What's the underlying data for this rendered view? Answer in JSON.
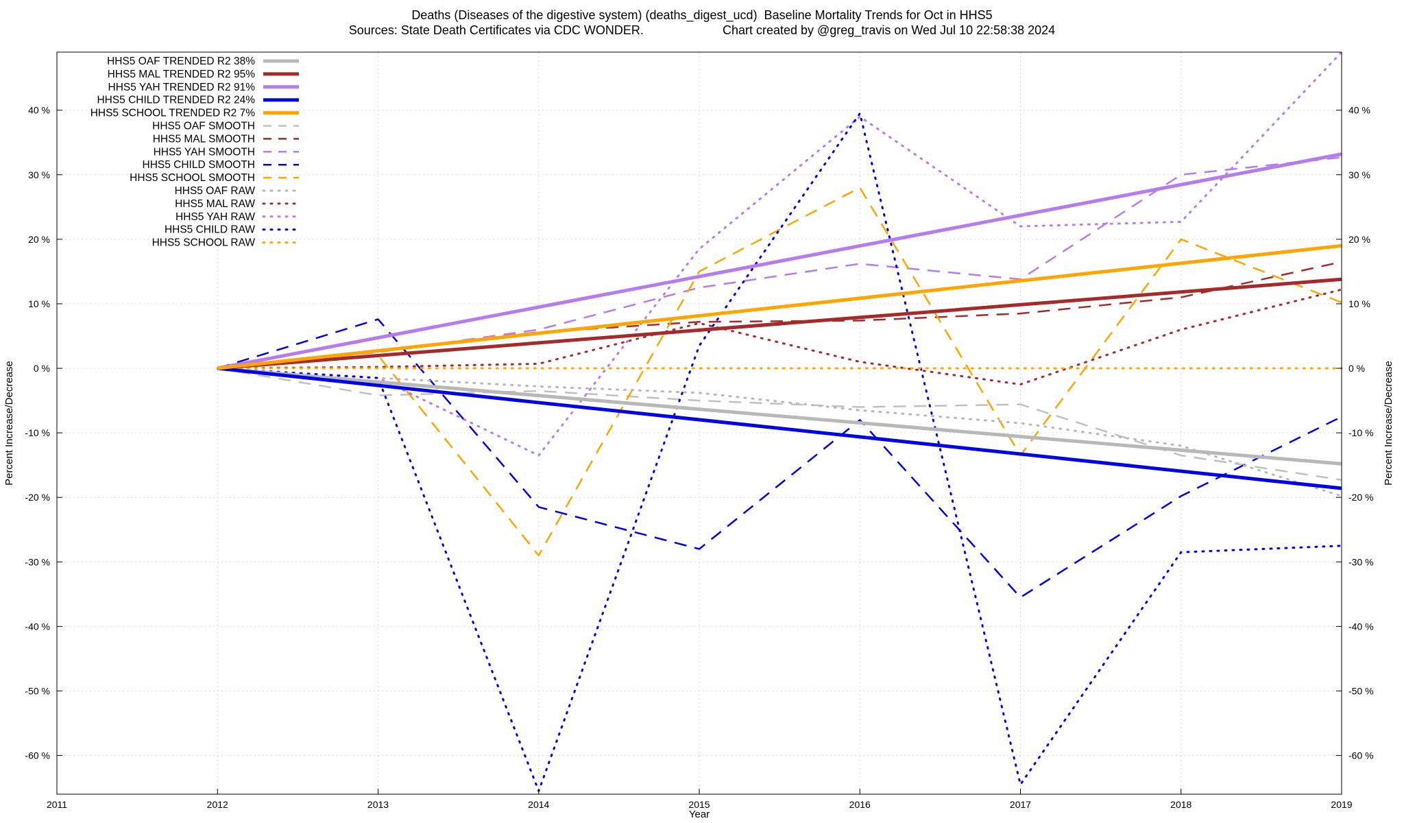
{
  "chart_data": {
    "type": "line",
    "title": "Deaths (Diseases of the digestive system) (deaths_digest_ucd)  Baseline Mortality Trends for Oct in HHS5",
    "subtitle_left": "Sources: State Death Certificates via CDC WONDER.",
    "subtitle_right": "Chart created by @greg_travis on Wed Jul 10 22:58:38 2024",
    "xlabel": "Year",
    "ylabel": "Percent Increase/Decrease",
    "xlim": [
      2011,
      2019
    ],
    "ylim": [
      -66,
      49
    ],
    "x_ticks": [
      2011,
      2012,
      2013,
      2014,
      2015,
      2016,
      2017,
      2018,
      2019
    ],
    "y_ticks": [
      40,
      30,
      20,
      10,
      0,
      -10,
      -20,
      -30,
      -40,
      -50,
      -60
    ],
    "y_tick_labels": [
      "40 %",
      "30 %",
      "20 %",
      "10 %",
      "0 %",
      "-10 %",
      "-20 %",
      "-30 %",
      "-40 %",
      "-50 %",
      "-60 %"
    ],
    "grid": true,
    "legend_position": "top-left",
    "series": [
      {
        "name": "HHS5 OAF TRENDED R2  38%",
        "style": "solid",
        "color": "#b8b8b8",
        "x": [
          2012,
          2019
        ],
        "y": [
          0,
          -14.8
        ]
      },
      {
        "name": "HHS5 MAL TRENDED R2  95%",
        "style": "solid",
        "color": "#a52a2a",
        "x": [
          2012,
          2019
        ],
        "y": [
          0,
          13.8
        ]
      },
      {
        "name": "HHS5 YAH TRENDED R2  91%",
        "style": "solid",
        "color": "#b77bf0",
        "x": [
          2012,
          2019
        ],
        "y": [
          0,
          33.2
        ]
      },
      {
        "name": "HHS5 CHILD TRENDED R2  24%",
        "style": "solid",
        "color": "#0000ee",
        "x": [
          2012,
          2019
        ],
        "y": [
          0,
          -18.6
        ]
      },
      {
        "name": "HHS5 SCHOOL TRENDED R2   7%",
        "style": "solid",
        "color": "#ffa500",
        "x": [
          2012,
          2019
        ],
        "y": [
          0,
          19.0
        ]
      },
      {
        "name": "HHS5 OAF SMOOTH",
        "style": "dashed",
        "color": "#c0c0c0",
        "x": [
          2012,
          2013,
          2014,
          2015,
          2016,
          2017,
          2018,
          2019
        ],
        "y": [
          0,
          -4.2,
          -3.5,
          -5.0,
          -6.0,
          -5.6,
          -13.5,
          -17.3
        ]
      },
      {
        "name": "HHS5 MAL SMOOTH",
        "style": "dashed",
        "color": "#a52a2a",
        "x": [
          2012,
          2013,
          2014,
          2015,
          2016,
          2017,
          2018,
          2019
        ],
        "y": [
          0,
          2.8,
          5.6,
          7.2,
          7.4,
          8.5,
          11.0,
          16.5
        ]
      },
      {
        "name": "HHS5 YAH SMOOTH",
        "style": "dashed",
        "color": "#b77bf0",
        "x": [
          2012,
          2013,
          2014,
          2015,
          2016,
          2017,
          2018,
          2019
        ],
        "y": [
          0,
          2.5,
          6.0,
          12.5,
          16.2,
          13.8,
          30.0,
          32.7
        ]
      },
      {
        "name": "HHS5 CHILD SMOOTH",
        "style": "dashed",
        "color": "#0000ee",
        "x": [
          2012,
          2013,
          2014,
          2015,
          2016,
          2017,
          2018,
          2019
        ],
        "y": [
          0,
          7.6,
          -21.5,
          -28.0,
          -8.0,
          -35.5,
          -19.8,
          -7.5
        ]
      },
      {
        "name": "HHS5 SCHOOL SMOOTH",
        "style": "dashed",
        "color": "#ffa500",
        "x": [
          2012,
          2013,
          2014,
          2015,
          2016,
          2017,
          2018,
          2019
        ],
        "y": [
          0,
          2.0,
          -29.0,
          15.0,
          28.0,
          -13.5,
          20.0,
          10.2
        ]
      },
      {
        "name": "HHS5 OAF RAW",
        "style": "dotted",
        "color": "#b8b8b8",
        "x": [
          2012,
          2013,
          2014,
          2015,
          2016,
          2017,
          2018,
          2019
        ],
        "y": [
          0,
          -1.5,
          -2.8,
          -3.8,
          -6.5,
          -8.5,
          -12.0,
          -19.8
        ]
      },
      {
        "name": "HHS5 MAL RAW",
        "style": "dotted",
        "color": "#a52a2a",
        "x": [
          2012,
          2013,
          2014,
          2015,
          2016,
          2017,
          2018,
          2019
        ],
        "y": [
          0,
          0.2,
          0.7,
          7.0,
          1.0,
          -2.5,
          6.0,
          12.2
        ]
      },
      {
        "name": "HHS5 YAH RAW",
        "style": "dotted",
        "color": "#b77bf0",
        "x": [
          2012,
          2013,
          2014,
          2015,
          2016,
          2017,
          2018,
          2019
        ],
        "y": [
          0,
          -1.5,
          -13.5,
          18.5,
          39.0,
          22.0,
          22.7,
          49.0
        ]
      },
      {
        "name": "HHS5 CHILD RAW",
        "style": "dotted",
        "color": "#0000ee",
        "x": [
          2012,
          2013,
          2014,
          2015,
          2016,
          2017,
          2018,
          2019
        ],
        "y": [
          0,
          -1.5,
          -65.5,
          3.5,
          39.5,
          -64.5,
          -28.5,
          -27.5
        ]
      },
      {
        "name": "HHS5 SCHOOL RAW",
        "style": "dotted",
        "color": "#ffa500",
        "x": [
          2012,
          2013,
          2014,
          2015,
          2016,
          2017,
          2018,
          2019
        ],
        "y": [
          0,
          0,
          0,
          0,
          0,
          0,
          0,
          0
        ]
      }
    ]
  }
}
